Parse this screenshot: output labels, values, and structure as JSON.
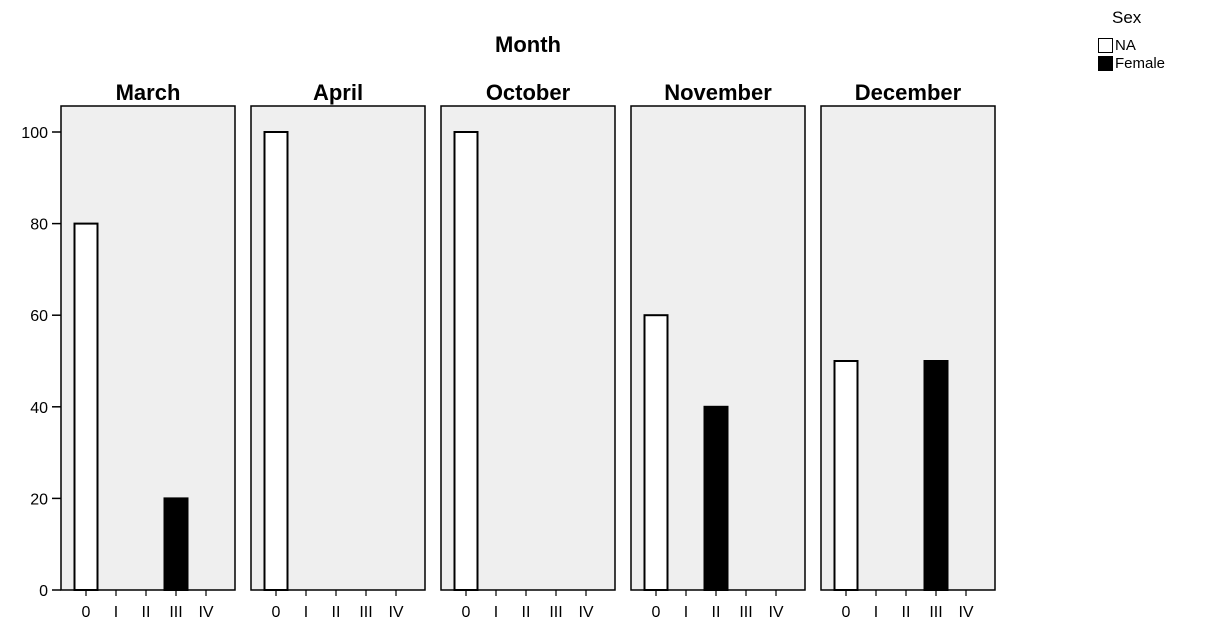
{
  "chart_data": {
    "type": "bar",
    "title": "Month",
    "panels": [
      "March",
      "April",
      "October",
      "November",
      "December"
    ],
    "categories": [
      "0",
      "I",
      "II",
      "III",
      "IV"
    ],
    "ylim": [
      0,
      100
    ],
    "yticks": [
      0,
      20,
      40,
      60,
      80,
      100
    ],
    "legend": {
      "title": "Sex",
      "placement": "top-right"
    },
    "series": [
      {
        "name": "NA",
        "color": "#ffffff",
        "values": [
          [
            80,
            0,
            0,
            0,
            0
          ],
          [
            100,
            0,
            0,
            0,
            0
          ],
          [
            100,
            0,
            0,
            0,
            0
          ],
          [
            60,
            0,
            0,
            0,
            0
          ],
          [
            50,
            0,
            0,
            0,
            0
          ]
        ]
      },
      {
        "name": "Female",
        "color": "#000000",
        "values": [
          [
            0,
            0,
            0,
            20,
            0
          ],
          [
            0,
            0,
            0,
            0,
            0
          ],
          [
            0,
            0,
            0,
            0,
            0
          ],
          [
            0,
            0,
            40,
            0,
            0
          ],
          [
            0,
            0,
            0,
            50,
            0
          ]
        ]
      }
    ],
    "panel_background": "#efefef"
  }
}
